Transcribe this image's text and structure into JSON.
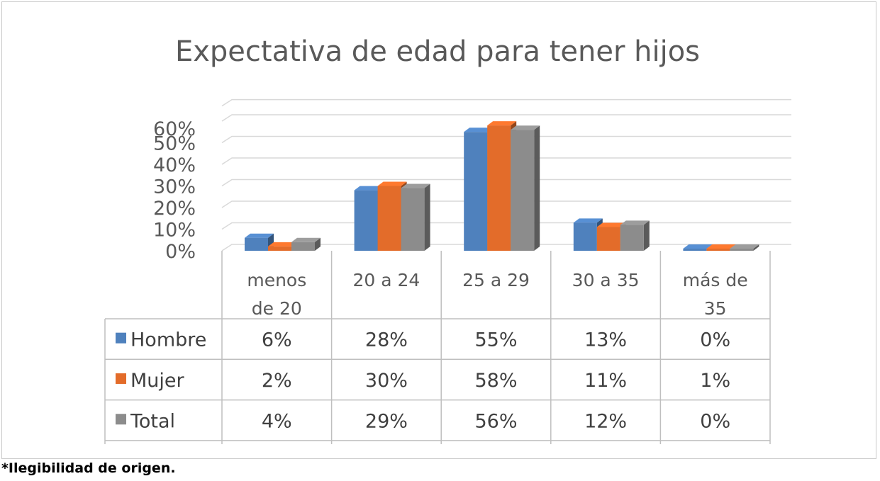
{
  "chart_data": {
    "type": "bar",
    "title": "Expectativa de edad para tener hijos",
    "categories": [
      [
        "menos",
        "de 20"
      ],
      [
        "20 a 24"
      ],
      [
        "25 a 29"
      ],
      [
        "30 a 35"
      ],
      [
        "más de",
        "35"
      ]
    ],
    "series": [
      {
        "name": "Hombre",
        "values": [
          6,
          28,
          55,
          13,
          0
        ],
        "labels": [
          "6%",
          "28%",
          "55%",
          "13%",
          "0%"
        ],
        "color": "#4f81bd"
      },
      {
        "name": "Mujer",
        "values": [
          2,
          30,
          58,
          11,
          1
        ],
        "labels": [
          "2%",
          "30%",
          "58%",
          "11%",
          "1%"
        ],
        "color": "#e36c2a"
      },
      {
        "name": "Total",
        "values": [
          4,
          29,
          56,
          12,
          0
        ],
        "labels": [
          "4%",
          "29%",
          "56%",
          "12%",
          "0%"
        ],
        "color": "#8c8c8c"
      }
    ],
    "yticks": [
      "0%",
      "10%",
      "20%",
      "30%",
      "40%",
      "50%",
      "60%"
    ],
    "ylim": [
      0,
      60
    ],
    "data_table": true,
    "legend": "data-table"
  },
  "footnote": "*Ilegibilidad de origen."
}
